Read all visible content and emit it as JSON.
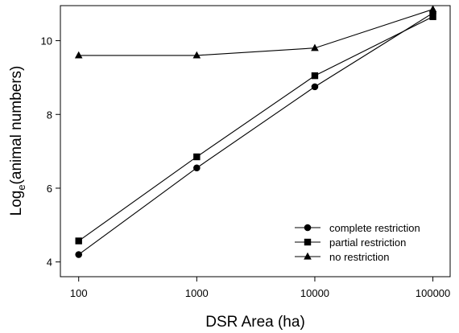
{
  "chart_data": {
    "type": "line",
    "xscale": "log",
    "x": [
      100,
      1000,
      10000,
      100000
    ],
    "x_tick_labels": [
      "100",
      "1000",
      "10000",
      "100000"
    ],
    "xlim": [
      70,
      140000
    ],
    "ylim": [
      3.6,
      10.95
    ],
    "y_ticks": [
      4,
      6,
      8,
      10
    ],
    "y_tick_labels": [
      "4",
      "6",
      "8",
      "10"
    ],
    "xlabel": "DSR Area (ha)",
    "ylabel_base": "Log",
    "ylabel_sub": "e",
    "ylabel_rest": "(animal numbers)",
    "grid": false,
    "legend_position": "bottom-right",
    "series": [
      {
        "name": "complete restriction",
        "marker": "circle",
        "values": [
          4.2,
          6.55,
          8.75,
          10.75
        ]
      },
      {
        "name": "partial restriction",
        "marker": "square",
        "values": [
          4.57,
          6.85,
          9.05,
          10.65
        ]
      },
      {
        "name": "no restriction",
        "marker": "triangle",
        "values": [
          9.6,
          9.6,
          9.8,
          10.85
        ]
      }
    ]
  }
}
